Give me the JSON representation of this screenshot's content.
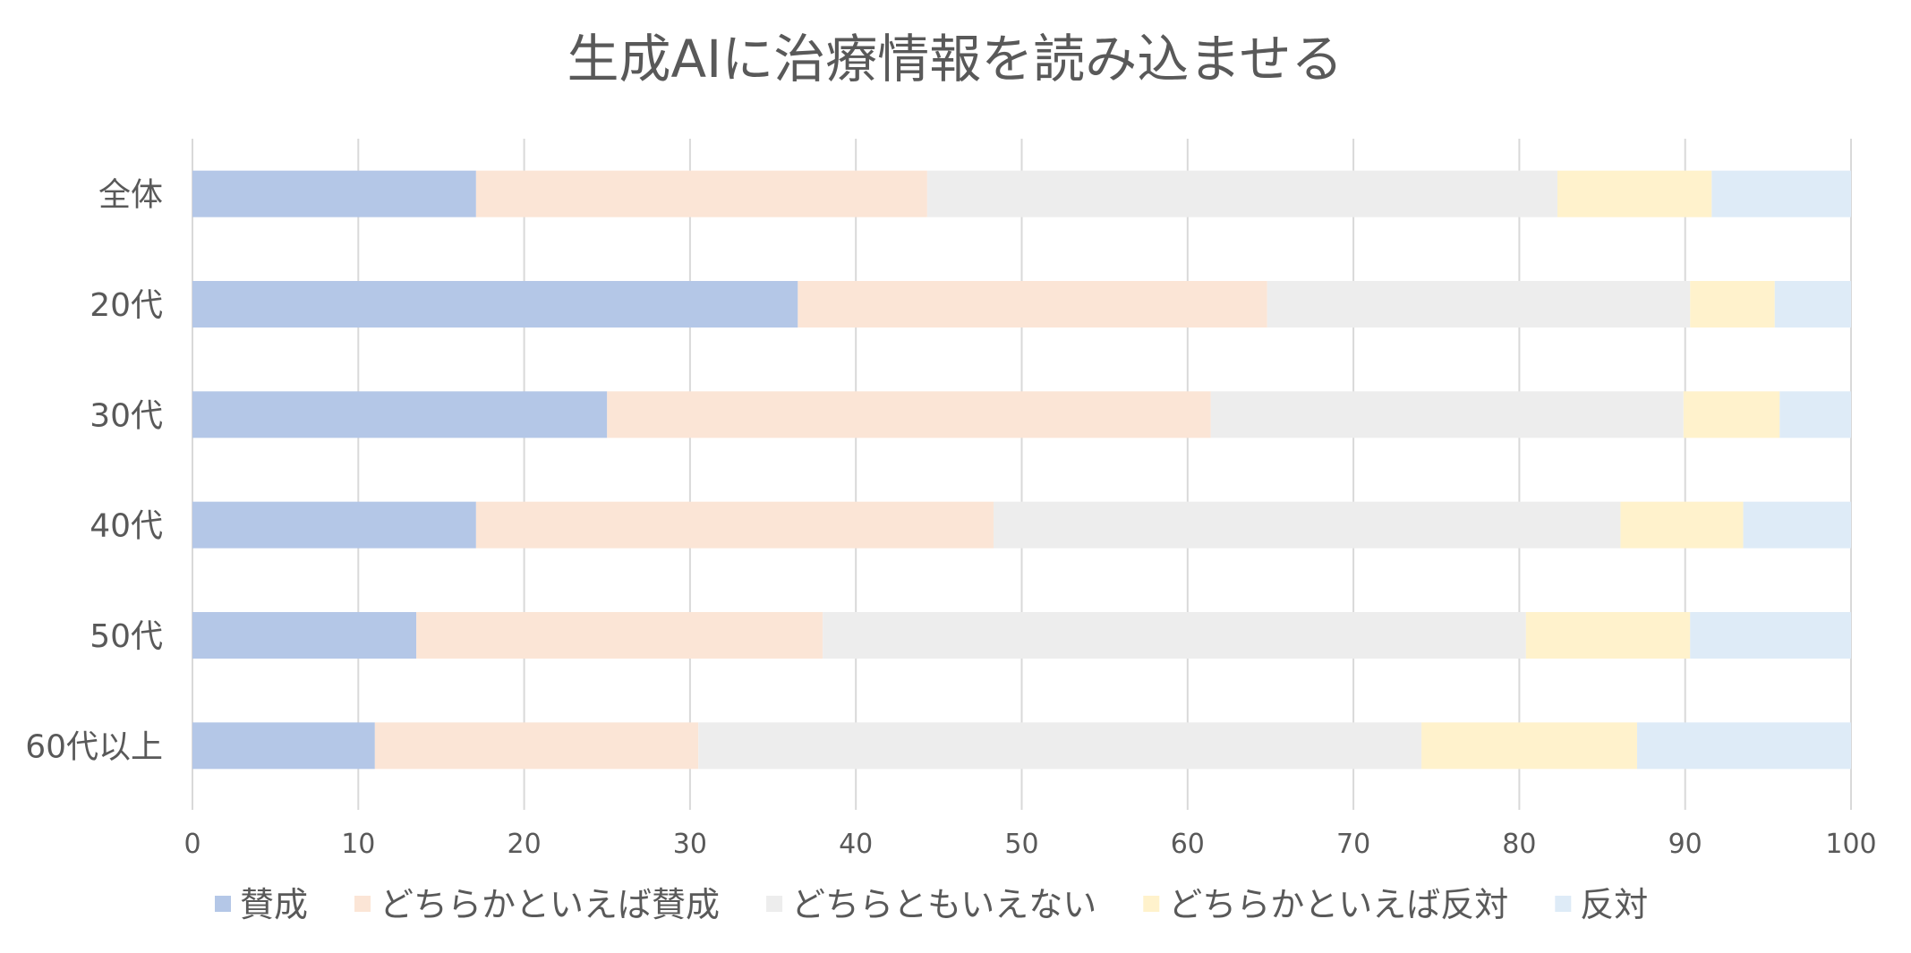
{
  "chart_data": {
    "type": "bar",
    "orientation": "horizontal",
    "stacked": true,
    "title": "生成AIに治療情報を読み込ませる",
    "categories": [
      "全体",
      "20代",
      "30代",
      "40代",
      "50代",
      "60代以上"
    ],
    "series": [
      {
        "name": "賛成",
        "color": "#b4c7e7",
        "values": [
          17.1,
          36.5,
          25.0,
          17.1,
          13.5,
          11.0
        ]
      },
      {
        "name": "どちらかといえば賛成",
        "color": "#fbe5d6",
        "values": [
          27.2,
          28.3,
          36.4,
          31.2,
          24.5,
          19.5
        ]
      },
      {
        "name": "どちらともいえない",
        "color": "#ededed",
        "values": [
          38.0,
          25.5,
          28.5,
          37.8,
          42.4,
          43.6
        ]
      },
      {
        "name": "どちらかといえば反対",
        "color": "#fff2cc",
        "values": [
          9.3,
          5.1,
          5.8,
          7.4,
          9.9,
          13.0
        ]
      },
      {
        "name": "反対",
        "color": "#deebf7",
        "values": [
          8.4,
          4.6,
          4.3,
          6.5,
          9.7,
          12.9
        ]
      }
    ],
    "xlim": [
      0,
      100
    ],
    "xticks": [
      "0",
      "10",
      "20",
      "30",
      "40",
      "50",
      "60",
      "70",
      "80",
      "90",
      "100"
    ],
    "grid": true,
    "legend_position": "bottom"
  }
}
